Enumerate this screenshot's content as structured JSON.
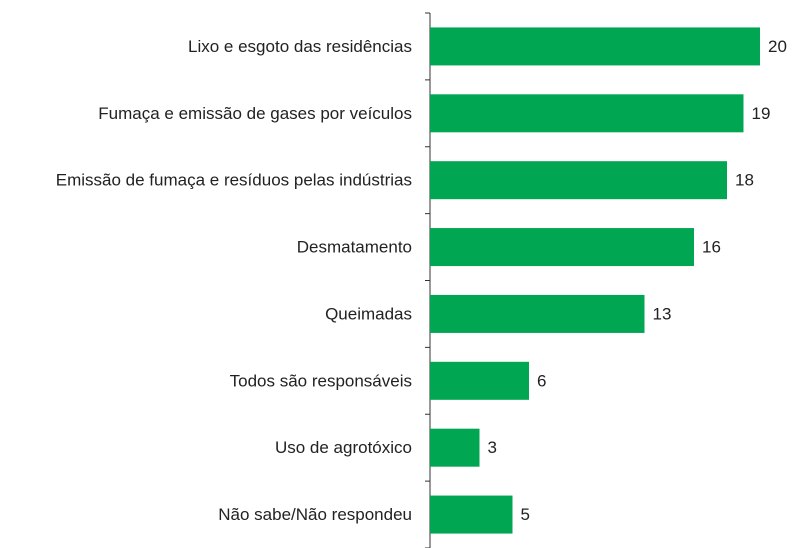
{
  "chart_data": {
    "type": "barh",
    "categories": [
      "Lixo e esgoto das residências",
      "Fumaça e emissão de gases por veículos",
      "Emissão de fumaça e resíduos pelas indústrias",
      "Desmatamento",
      "Queimadas",
      "Todos são responsáveis",
      "Uso de agrotóxico",
      "Não sabe/Não respondeu"
    ],
    "values": [
      20,
      19,
      18,
      16,
      13,
      6,
      3,
      5
    ],
    "color": "#00a651",
    "xlim": [
      0,
      20
    ]
  }
}
